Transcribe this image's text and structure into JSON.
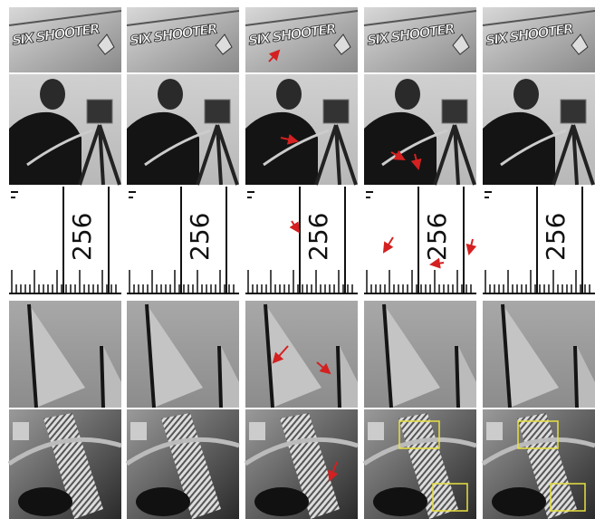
{
  "panels": {
    "plane_text": [
      "SIX SHOOTER",
      "SIX SHOOTER",
      "SIX SHOOTER",
      "SIX SHOOTER",
      "SIX SHOOTER"
    ],
    "ruler_text": [
      "256",
      "256",
      "256",
      "256",
      "256"
    ]
  }
}
